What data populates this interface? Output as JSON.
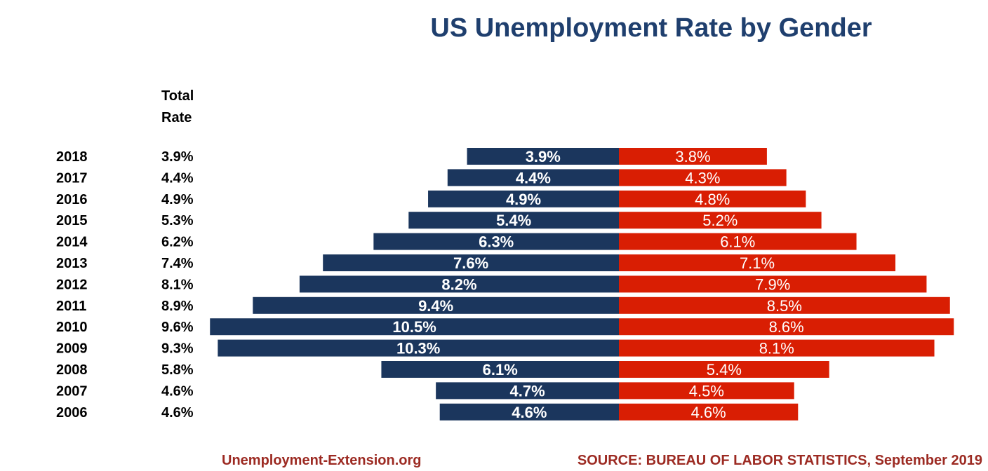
{
  "colors": {
    "male": "#1b365d",
    "female": "#d91e03",
    "title": "#1f3f6e",
    "footer": "#9c2a22"
  },
  "chart_data": {
    "type": "bar",
    "orientation": "horizontal-diverging",
    "title": "US Unemployment Rate by Gender",
    "total_header": [
      "Total",
      "Rate"
    ],
    "categories": [
      "2018",
      "2017",
      "2016",
      "2015",
      "2014",
      "2013",
      "2012",
      "2011",
      "2010",
      "2009",
      "2008",
      "2007",
      "2006"
    ],
    "total_rate": [
      "3.9%",
      "4.4%",
      "4.9%",
      "5.3%",
      "6.2%",
      "7.4%",
      "8.1%",
      "8.9%",
      "9.6%",
      "9.3%",
      "5.8%",
      "4.6%",
      "4.6%"
    ],
    "series": [
      {
        "values": [
          3.9,
          4.4,
          4.9,
          5.4,
          6.3,
          7.6,
          8.2,
          9.4,
          10.5,
          10.3,
          6.1,
          4.7,
          4.6
        ],
        "labels": [
          "3.9%",
          "4.4%",
          "4.9%",
          "5.4%",
          "6.3%",
          "7.6%",
          "8.2%",
          "9.4%",
          "10.5%",
          "10.3%",
          "6.1%",
          "4.7%",
          "4.6%"
        ]
      },
      {
        "values": [
          3.8,
          4.3,
          4.8,
          5.2,
          6.1,
          7.1,
          7.9,
          8.5,
          8.6,
          8.1,
          5.4,
          4.5,
          4.6
        ],
        "labels": [
          "3.8%",
          "4.3%",
          "4.8%",
          "5.2%",
          "6.1%",
          "7.1%",
          "7.9%",
          "8.5%",
          "8.6%",
          "8.1%",
          "5.4%",
          "4.5%",
          "4.6%"
        ]
      }
    ],
    "legend": "none",
    "grid": false
  },
  "footer": {
    "site": "Unemployment-Extension.org",
    "source": "SOURCE: BUREAU OF LABOR STATISTICS, September 2019"
  }
}
